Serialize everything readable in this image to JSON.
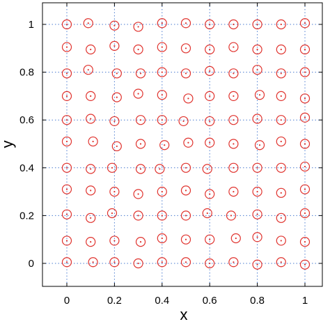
{
  "chart_data": {
    "type": "scatter",
    "title": "",
    "xlabel": "x",
    "ylabel": "y",
    "xlim": [
      -0.1,
      1.05
    ],
    "ylim": [
      -0.1,
      1.1
    ],
    "xticks": [
      0,
      0.2,
      0.4,
      0.6,
      0.8,
      1
    ],
    "yticks": [
      0,
      0.2,
      0.4,
      0.6,
      0.8,
      1
    ],
    "xtick_labels": [
      "0",
      "0.2",
      "0.4",
      "0.6",
      "0.8",
      "1"
    ],
    "ytick_labels": [
      "0",
      "0.2",
      "0.4",
      "0.6",
      "0.8",
      "1"
    ],
    "grid": true,
    "legend": "none",
    "marker": "circle with center dot",
    "marker_color": "#e0322d",
    "grid_color": "#4a7bd0",
    "series": [
      {
        "points": [
          [
            0.0,
            1.0
          ],
          [
            0.09,
            1.005
          ],
          [
            0.2,
            0.995
          ],
          [
            0.3,
            0.99
          ],
          [
            0.4,
            1.005
          ],
          [
            0.5,
            1.005
          ],
          [
            0.6,
            1.0
          ],
          [
            0.7,
            1.0
          ],
          [
            0.8,
            1.0
          ],
          [
            0.9,
            1.0
          ],
          [
            1.0,
            1.005
          ],
          [
            0.0,
            0.905
          ],
          [
            0.1,
            0.895
          ],
          [
            0.2,
            0.91
          ],
          [
            0.3,
            0.895
          ],
          [
            0.4,
            0.905
          ],
          [
            0.5,
            0.9
          ],
          [
            0.6,
            0.895
          ],
          [
            0.7,
            0.905
          ],
          [
            0.8,
            0.895
          ],
          [
            0.9,
            0.895
          ],
          [
            1.0,
            0.895
          ],
          [
            0.0,
            0.795
          ],
          [
            0.09,
            0.81
          ],
          [
            0.21,
            0.795
          ],
          [
            0.31,
            0.795
          ],
          [
            0.4,
            0.8
          ],
          [
            0.5,
            0.795
          ],
          [
            0.6,
            0.805
          ],
          [
            0.7,
            0.795
          ],
          [
            0.8,
            0.81
          ],
          [
            0.9,
            0.795
          ],
          [
            1.0,
            0.8
          ],
          [
            0.0,
            0.7
          ],
          [
            0.1,
            0.7
          ],
          [
            0.21,
            0.695
          ],
          [
            0.3,
            0.71
          ],
          [
            0.4,
            0.705
          ],
          [
            0.51,
            0.69
          ],
          [
            0.6,
            0.7
          ],
          [
            0.7,
            0.7
          ],
          [
            0.81,
            0.705
          ],
          [
            0.9,
            0.7
          ],
          [
            1.0,
            0.69
          ],
          [
            0.0,
            0.6
          ],
          [
            0.1,
            0.605
          ],
          [
            0.2,
            0.595
          ],
          [
            0.31,
            0.6
          ],
          [
            0.4,
            0.6
          ],
          [
            0.49,
            0.595
          ],
          [
            0.6,
            0.595
          ],
          [
            0.7,
            0.6
          ],
          [
            0.8,
            0.605
          ],
          [
            0.9,
            0.6
          ],
          [
            1.0,
            0.61
          ],
          [
            0.0,
            0.51
          ],
          [
            0.11,
            0.51
          ],
          [
            0.21,
            0.49
          ],
          [
            0.31,
            0.5
          ],
          [
            0.41,
            0.495
          ],
          [
            0.51,
            0.505
          ],
          [
            0.6,
            0.505
          ],
          [
            0.7,
            0.5
          ],
          [
            0.81,
            0.495
          ],
          [
            0.9,
            0.51
          ],
          [
            1.0,
            0.5
          ],
          [
            0.0,
            0.4
          ],
          [
            0.1,
            0.395
          ],
          [
            0.19,
            0.4
          ],
          [
            0.31,
            0.395
          ],
          [
            0.39,
            0.395
          ],
          [
            0.5,
            0.4
          ],
          [
            0.59,
            0.395
          ],
          [
            0.7,
            0.4
          ],
          [
            0.8,
            0.4
          ],
          [
            0.9,
            0.4
          ],
          [
            1.0,
            0.405
          ],
          [
            0.0,
            0.31
          ],
          [
            0.1,
            0.305
          ],
          [
            0.2,
            0.3
          ],
          [
            0.3,
            0.29
          ],
          [
            0.4,
            0.3
          ],
          [
            0.5,
            0.305
          ],
          [
            0.6,
            0.29
          ],
          [
            0.7,
            0.3
          ],
          [
            0.8,
            0.3
          ],
          [
            0.9,
            0.295
          ],
          [
            1.0,
            0.31
          ],
          [
            0.0,
            0.205
          ],
          [
            0.1,
            0.19
          ],
          [
            0.19,
            0.21
          ],
          [
            0.3,
            0.2
          ],
          [
            0.4,
            0.2
          ],
          [
            0.5,
            0.2
          ],
          [
            0.59,
            0.21
          ],
          [
            0.69,
            0.2
          ],
          [
            0.8,
            0.205
          ],
          [
            0.9,
            0.19
          ],
          [
            1.0,
            0.21
          ],
          [
            0.0,
            0.095
          ],
          [
            0.1,
            0.09
          ],
          [
            0.2,
            0.095
          ],
          [
            0.31,
            0.09
          ],
          [
            0.4,
            0.105
          ],
          [
            0.5,
            0.1
          ],
          [
            0.6,
            0.1
          ],
          [
            0.71,
            0.105
          ],
          [
            0.8,
            0.11
          ],
          [
            0.9,
            0.095
          ],
          [
            1.0,
            0.09
          ],
          [
            0.0,
            0.005
          ],
          [
            0.11,
            0.005
          ],
          [
            0.2,
            0.005
          ],
          [
            0.3,
            0.0
          ],
          [
            0.4,
            0.005
          ],
          [
            0.5,
            0.005
          ],
          [
            0.6,
            0.0
          ],
          [
            0.7,
            0.005
          ],
          [
            0.8,
            -0.005
          ],
          [
            0.9,
            0.005
          ],
          [
            1.0,
            -0.005
          ]
        ]
      }
    ]
  }
}
